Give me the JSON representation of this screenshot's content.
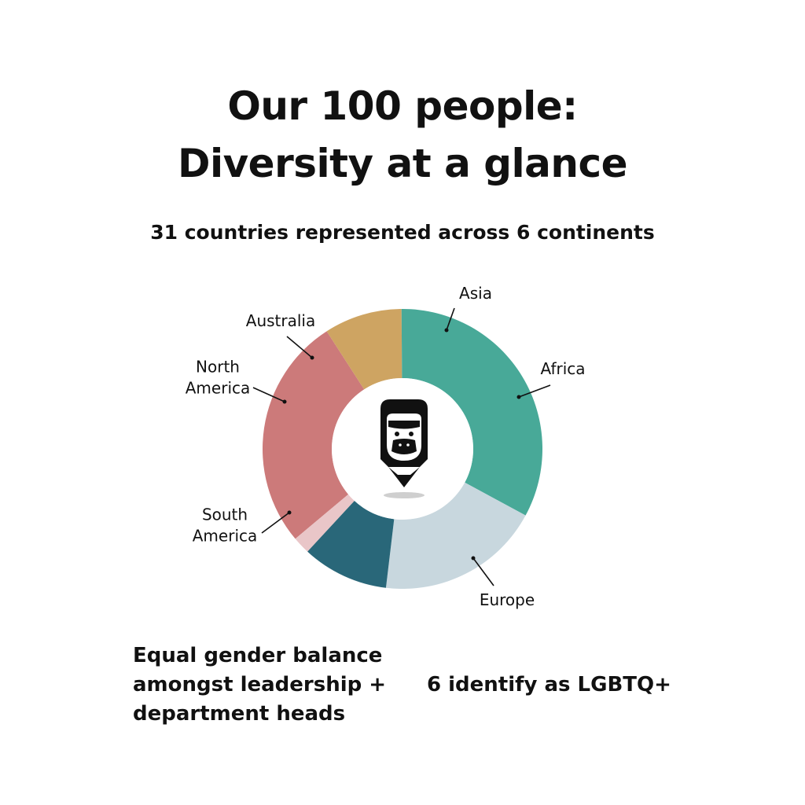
{
  "header": {
    "title_line1": "Our 100 people:",
    "title_line2": "Diversity at a glance",
    "subtitle": "31 countries represented across 6 continents"
  },
  "chart_data": {
    "type": "pie",
    "style": "donut",
    "title": "",
    "center_icon": "gorilla-pencil-logo-icon",
    "series": [
      {
        "name": "Asia",
        "label_lines": [
          "Asia"
        ],
        "value": 27,
        "color": "#cc7a7a"
      },
      {
        "name": "Africa",
        "label_lines": [
          "Africa"
        ],
        "value": 9,
        "color": "#cea462"
      },
      {
        "name": "Europe",
        "label_lines": [
          "Europe"
        ],
        "value": 33,
        "color": "#48a998"
      },
      {
        "name": "South America",
        "label_lines": [
          "South",
          "America"
        ],
        "value": 19,
        "color": "#c8d7de"
      },
      {
        "name": "North America",
        "label_lines": [
          "North",
          "America"
        ],
        "value": 10,
        "color": "#296779"
      },
      {
        "name": "Australia",
        "label_lines": [
          "Australia"
        ],
        "value": 2,
        "color": "#e9c6c8"
      }
    ]
  },
  "facts": {
    "gender_lines": [
      "Equal gender balance",
      "amongst leadership +",
      "department heads"
    ],
    "lgbtq": "6 identify as LGBTQ+"
  }
}
